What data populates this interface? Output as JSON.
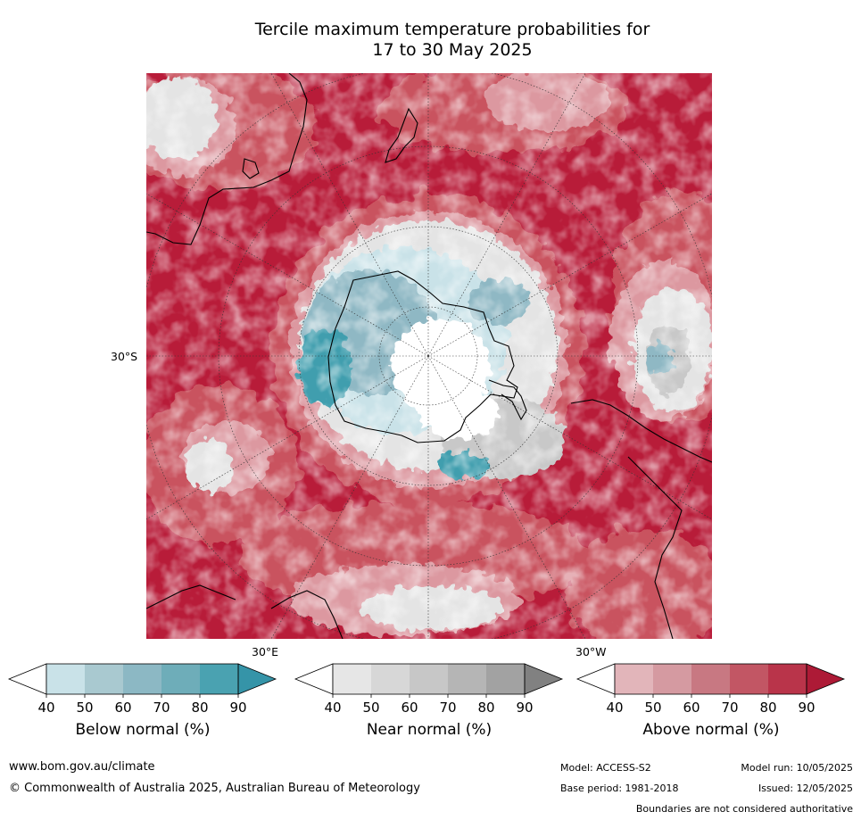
{
  "title_line1": "Tercile maximum temperature probabilities for",
  "title_line2": "17 to 30 May 2025",
  "map": {
    "lat_label": "30°S",
    "lon_label_east": "30°E",
    "lon_label_west": "30°W",
    "colors": {
      "above_dark": "#b81c39",
      "above_mid": "#c9525f",
      "above_light": "#dc98a0",
      "near_light": "#e4e4e4",
      "near_mid": "#c8c8c8",
      "below_light": "#c9e2e8",
      "below_mid": "#8fb8c4",
      "below_dark": "#3f9eae",
      "land_outline": "#000000"
    }
  },
  "colorbars": [
    {
      "title": "Below normal (%)",
      "ticks": [
        "40",
        "50",
        "60",
        "70",
        "80",
        "90"
      ],
      "colors": [
        "#ffffff",
        "#c9e2e8",
        "#a9c9d0",
        "#8cb8c4",
        "#6eadb9",
        "#4aa2b1",
        "#3594a8"
      ]
    },
    {
      "title": "Near normal (%)",
      "ticks": [
        "40",
        "50",
        "60",
        "70",
        "80",
        "90"
      ],
      "colors": [
        "#ffffff",
        "#e6e6e6",
        "#d7d7d7",
        "#c7c7c7",
        "#b5b5b5",
        "#a2a2a2",
        "#818181"
      ]
    },
    {
      "title": "Above normal (%)",
      "ticks": [
        "40",
        "50",
        "60",
        "70",
        "80",
        "90"
      ],
      "colors": [
        "#ffffff",
        "#e2b5ba",
        "#d59aa1",
        "#c87882",
        "#c25664",
        "#b9344a",
        "#ad1a36"
      ]
    }
  ],
  "footer": {
    "website": "www.bom.gov.au/climate",
    "copyright": "© Commonwealth of Australia 2025, Australian Bureau of Meteorology",
    "model": "Model: ACCESS-S2",
    "model_run": "Model run: 10/05/2025",
    "base_period": "Base period: 1981-2018",
    "issued": "Issued: 12/05/2025",
    "disclaimer": "Boundaries are not considered authoritative"
  }
}
